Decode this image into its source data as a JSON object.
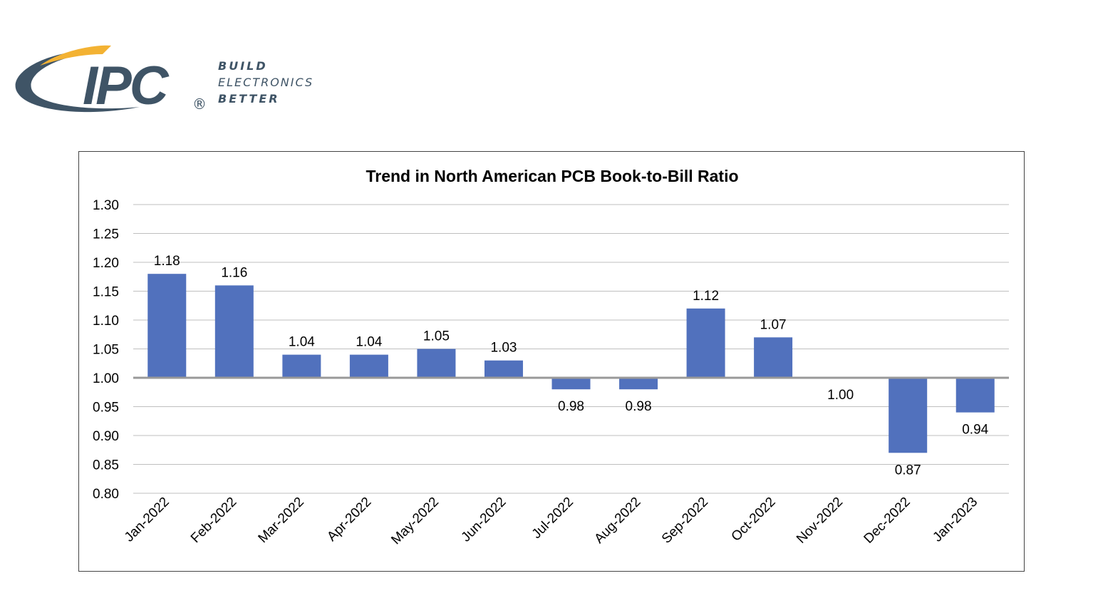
{
  "logo": {
    "brand": "IPC",
    "tagline": [
      "BUILD",
      "ELECTRONICS",
      "BETTER"
    ],
    "colors": {
      "navy": "#3f5466",
      "gold": "#f3b233"
    }
  },
  "chart_data": {
    "type": "bar",
    "title": "Trend in North American PCB Book-to-Bill Ratio",
    "xlabel": "",
    "ylabel": "",
    "categories": [
      "Jan-2022",
      "Feb-2022",
      "Mar-2022",
      "Apr-2022",
      "May-2022",
      "Jun-2022",
      "Jul-2022",
      "Aug-2022",
      "Sep-2022",
      "Oct-2022",
      "Nov-2022",
      "Dec-2022",
      "Jan-2023"
    ],
    "values": [
      1.18,
      1.16,
      1.04,
      1.04,
      1.05,
      1.03,
      0.98,
      0.98,
      1.12,
      1.07,
      1.0,
      0.87,
      0.94
    ],
    "baseline": 1.0,
    "ylim": [
      0.8,
      1.3
    ],
    "yticks": [
      "0.80",
      "0.85",
      "0.90",
      "0.95",
      "1.00",
      "1.05",
      "1.10",
      "1.15",
      "1.20",
      "1.25",
      "1.30"
    ],
    "grid": true,
    "legend": "none",
    "bar_color": "#5171bd",
    "gridline_color": "#bfbfbf",
    "baseline_color": "#999999"
  }
}
